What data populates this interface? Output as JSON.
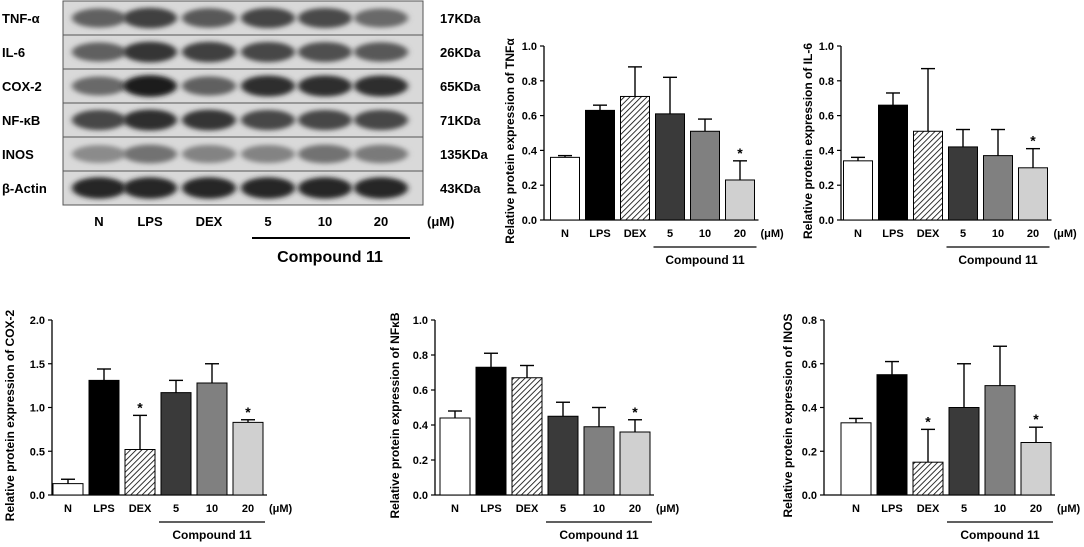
{
  "blot": {
    "rows": [
      {
        "protein": "TNF-α",
        "size": "17KDa",
        "intensity": [
          0.55,
          0.75,
          0.6,
          0.72,
          0.68,
          0.5
        ]
      },
      {
        "protein": "IL-6",
        "size": "26KDa",
        "intensity": [
          0.55,
          0.8,
          0.75,
          0.7,
          0.65,
          0.6
        ]
      },
      {
        "protein": "COX-2",
        "size": "65KDa",
        "intensity": [
          0.5,
          0.95,
          0.55,
          0.85,
          0.85,
          0.85
        ]
      },
      {
        "protein": "NF-κB",
        "size": "71KDa",
        "intensity": [
          0.7,
          0.85,
          0.8,
          0.7,
          0.7,
          0.7
        ]
      },
      {
        "protein": "INOS",
        "size": "135KDa",
        "intensity": [
          0.3,
          0.45,
          0.35,
          0.35,
          0.45,
          0.4
        ]
      },
      {
        "protein": "β-Actin",
        "size": "43KDa",
        "intensity": [
          0.9,
          0.9,
          0.9,
          0.9,
          0.9,
          0.9
        ]
      }
    ],
    "lanes": [
      "N",
      "LPS",
      "DEX",
      "5",
      "10",
      "20"
    ],
    "unit": "(μM)",
    "group_label": "Compound 11"
  },
  "chart_data": [
    {
      "type": "bar",
      "ylabel": "Relative protein expression of TNFα",
      "categories": [
        "N",
        "LPS",
        "DEX",
        "5",
        "10",
        "20"
      ],
      "unit": "(μM)",
      "group_label": "Compound 11",
      "ylim": [
        0,
        1.0
      ],
      "yticks": [
        0,
        0.2,
        0.4,
        0.6,
        0.8,
        1.0
      ],
      "values": [
        0.36,
        0.63,
        0.71,
        0.61,
        0.51,
        0.23
      ],
      "errors": [
        0.01,
        0.03,
        0.17,
        0.21,
        0.07,
        0.11
      ],
      "significance": [
        "",
        "",
        "",
        "",
        "",
        "*"
      ]
    },
    {
      "type": "bar",
      "ylabel": "Relative protein expression of IL-6",
      "categories": [
        "N",
        "LPS",
        "DEX",
        "5",
        "10",
        "20"
      ],
      "unit": "(μM)",
      "group_label": "Compound 11",
      "ylim": [
        0,
        1.0
      ],
      "yticks": [
        0,
        0.2,
        0.4,
        0.6,
        0.8,
        1.0
      ],
      "values": [
        0.34,
        0.66,
        0.51,
        0.42,
        0.37,
        0.3
      ],
      "errors": [
        0.02,
        0.07,
        0.36,
        0.1,
        0.15,
        0.11
      ],
      "significance": [
        "",
        "",
        "",
        "",
        "",
        "*"
      ]
    },
    {
      "type": "bar",
      "ylabel": "Relative protein expression of COX-2",
      "categories": [
        "N",
        "LPS",
        "DEX",
        "5",
        "10",
        "20"
      ],
      "unit": "(μM)",
      "group_label": "Compound 11",
      "ylim": [
        0,
        2.0
      ],
      "yticks": [
        0,
        0.5,
        1.0,
        1.5,
        2.0
      ],
      "values": [
        0.13,
        1.31,
        0.52,
        1.17,
        1.28,
        0.83
      ],
      "errors": [
        0.05,
        0.13,
        0.39,
        0.14,
        0.22,
        0.03
      ],
      "significance": [
        "",
        "",
        "*",
        "",
        "",
        "*"
      ]
    },
    {
      "type": "bar",
      "ylabel": "Relative protein expression of NFκB",
      "categories": [
        "N",
        "LPS",
        "DEX",
        "5",
        "10",
        "20"
      ],
      "unit": "(μM)",
      "group_label": "Compound 11",
      "ylim": [
        0,
        1.0
      ],
      "yticks": [
        0,
        0.2,
        0.4,
        0.6,
        0.8,
        1.0
      ],
      "values": [
        0.44,
        0.73,
        0.67,
        0.45,
        0.39,
        0.36
      ],
      "errors": [
        0.04,
        0.08,
        0.07,
        0.08,
        0.11,
        0.07
      ],
      "significance": [
        "",
        "",
        "",
        "",
        "",
        "*"
      ]
    },
    {
      "type": "bar",
      "ylabel": "Relative protein expression of INOS",
      "categories": [
        "N",
        "LPS",
        "DEX",
        "5",
        "10",
        "20"
      ],
      "unit": "(μM)",
      "group_label": "Compound 11",
      "ylim": [
        0,
        0.8
      ],
      "yticks": [
        0,
        0.2,
        0.4,
        0.6,
        0.8
      ],
      "values": [
        0.33,
        0.55,
        0.15,
        0.4,
        0.5,
        0.24
      ],
      "errors": [
        0.02,
        0.06,
        0.15,
        0.2,
        0.18,
        0.07
      ],
      "significance": [
        "",
        "",
        "*",
        "",
        "",
        "*"
      ]
    }
  ],
  "fills": [
    "#ffffff",
    "#000000",
    "hatch",
    "#3a3a3a",
    "#808080",
    "#d0d0d0"
  ]
}
